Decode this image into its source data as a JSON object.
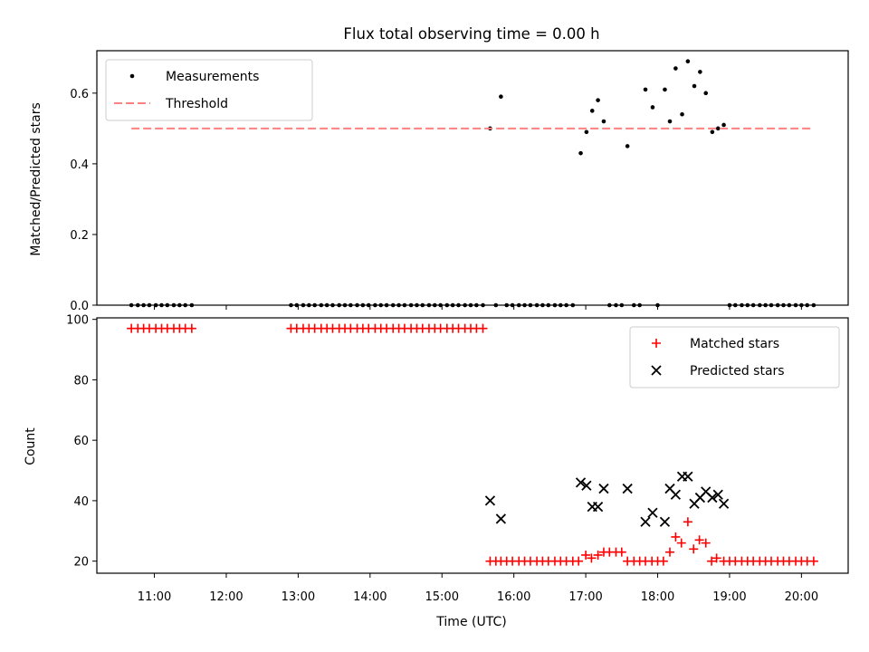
{
  "chart_data": [
    {
      "type": "scatter",
      "title": "Flux total observing time = 0.00 h",
      "xlabel": "",
      "ylabel": "Matched/Predicted stars",
      "ylim": [
        0,
        0.72
      ],
      "xlim": [
        10.2,
        20.65
      ],
      "yticks": [
        0.0,
        0.2,
        0.4,
        0.6
      ],
      "ytick_labels": [
        "0.0",
        "0.2",
        "0.4",
        "0.6"
      ],
      "legend_position": "top-left",
      "series": [
        {
          "name": "Measurements",
          "color": "#000000",
          "marker": "dot",
          "points": [
            [
              10.68,
              0
            ],
            [
              10.77,
              0
            ],
            [
              10.85,
              0
            ],
            [
              10.93,
              0
            ],
            [
              11.02,
              0
            ],
            [
              11.1,
              0
            ],
            [
              11.18,
              0
            ],
            [
              11.27,
              0
            ],
            [
              11.35,
              0
            ],
            [
              11.43,
              0
            ],
            [
              11.52,
              0
            ],
            [
              12.9,
              0
            ],
            [
              12.98,
              0
            ],
            [
              13.07,
              0
            ],
            [
              13.15,
              0
            ],
            [
              13.23,
              0
            ],
            [
              13.32,
              0
            ],
            [
              13.4,
              0
            ],
            [
              13.48,
              0
            ],
            [
              13.57,
              0
            ],
            [
              13.65,
              0
            ],
            [
              13.73,
              0
            ],
            [
              13.82,
              0
            ],
            [
              13.9,
              0
            ],
            [
              13.98,
              0
            ],
            [
              14.07,
              0
            ],
            [
              14.15,
              0
            ],
            [
              14.23,
              0
            ],
            [
              14.32,
              0
            ],
            [
              14.4,
              0
            ],
            [
              14.48,
              0
            ],
            [
              14.57,
              0
            ],
            [
              14.65,
              0
            ],
            [
              14.73,
              0
            ],
            [
              14.82,
              0
            ],
            [
              14.9,
              0
            ],
            [
              14.98,
              0
            ],
            [
              15.07,
              0
            ],
            [
              15.15,
              0
            ],
            [
              15.23,
              0
            ],
            [
              15.32,
              0
            ],
            [
              15.4,
              0
            ],
            [
              15.48,
              0
            ],
            [
              15.57,
              0
            ],
            [
              15.67,
              0.5
            ],
            [
              15.82,
              0.59
            ],
            [
              15.75,
              0
            ],
            [
              15.9,
              0
            ],
            [
              15.98,
              0
            ],
            [
              16.07,
              0
            ],
            [
              16.15,
              0
            ],
            [
              16.23,
              0
            ],
            [
              16.32,
              0
            ],
            [
              16.4,
              0
            ],
            [
              16.48,
              0
            ],
            [
              16.57,
              0
            ],
            [
              16.65,
              0
            ],
            [
              16.73,
              0
            ],
            [
              16.82,
              0
            ],
            [
              16.93,
              0.43
            ],
            [
              17.01,
              0.49
            ],
            [
              17.09,
              0.55
            ],
            [
              17.17,
              0.58
            ],
            [
              17.25,
              0.52
            ],
            [
              17.58,
              0.45
            ],
            [
              17.83,
              0.61
            ],
            [
              17.93,
              0.56
            ],
            [
              18.1,
              0.61
            ],
            [
              18.17,
              0.52
            ],
            [
              18.25,
              0.67
            ],
            [
              18.34,
              0.54
            ],
            [
              18.42,
              0.69
            ],
            [
              18.51,
              0.62
            ],
            [
              18.59,
              0.66
            ],
            [
              18.67,
              0.6
            ],
            [
              18.76,
              0.49
            ],
            [
              18.84,
              0.5
            ],
            [
              18.92,
              0.51
            ],
            [
              17.33,
              0
            ],
            [
              17.42,
              0
            ],
            [
              17.5,
              0
            ],
            [
              17.67,
              0
            ],
            [
              17.75,
              0
            ],
            [
              18.0,
              0
            ],
            [
              19.0,
              0
            ],
            [
              19.08,
              0
            ],
            [
              19.17,
              0
            ],
            [
              19.25,
              0
            ],
            [
              19.33,
              0
            ],
            [
              19.42,
              0
            ],
            [
              19.5,
              0
            ],
            [
              19.58,
              0
            ],
            [
              19.67,
              0
            ],
            [
              19.75,
              0
            ],
            [
              19.83,
              0
            ],
            [
              19.92,
              0
            ],
            [
              20.0,
              0
            ],
            [
              20.08,
              0
            ],
            [
              20.17,
              0
            ]
          ]
        },
        {
          "name": "Threshold",
          "color": "#ff8080",
          "style": "dashed",
          "x": [
            10.68,
            20.17
          ],
          "y": [
            0.5,
            0.5
          ]
        }
      ]
    },
    {
      "type": "scatter",
      "title": "",
      "xlabel": "Time (UTC)",
      "ylabel": "Count",
      "ylim": [
        16,
        100.5
      ],
      "xlim": [
        10.2,
        20.65
      ],
      "yticks": [
        20,
        40,
        60,
        80,
        100
      ],
      "ytick_labels": [
        "20",
        "40",
        "60",
        "80",
        "100"
      ],
      "xticks": [
        11,
        12,
        13,
        14,
        15,
        16,
        17,
        18,
        19,
        20
      ],
      "xtick_labels": [
        "11:00",
        "12:00",
        "13:00",
        "14:00",
        "15:00",
        "16:00",
        "17:00",
        "18:00",
        "19:00",
        "20:00"
      ],
      "legend_position": "top-right",
      "series": [
        {
          "name": "Matched stars",
          "color": "#ff0000",
          "marker": "plus",
          "points": [
            [
              10.68,
              97
            ],
            [
              10.77,
              97
            ],
            [
              10.85,
              97
            ],
            [
              10.93,
              97
            ],
            [
              11.02,
              97
            ],
            [
              11.1,
              97
            ],
            [
              11.18,
              97
            ],
            [
              11.27,
              97
            ],
            [
              11.35,
              97
            ],
            [
              11.43,
              97
            ],
            [
              11.52,
              97
            ],
            [
              12.9,
              97
            ],
            [
              12.98,
              97
            ],
            [
              13.07,
              97
            ],
            [
              13.15,
              97
            ],
            [
              13.23,
              97
            ],
            [
              13.32,
              97
            ],
            [
              13.4,
              97
            ],
            [
              13.48,
              97
            ],
            [
              13.57,
              97
            ],
            [
              13.65,
              97
            ],
            [
              13.73,
              97
            ],
            [
              13.82,
              97
            ],
            [
              13.9,
              97
            ],
            [
              13.98,
              97
            ],
            [
              14.07,
              97
            ],
            [
              14.15,
              97
            ],
            [
              14.23,
              97
            ],
            [
              14.32,
              97
            ],
            [
              14.4,
              97
            ],
            [
              14.48,
              97
            ],
            [
              14.57,
              97
            ],
            [
              14.65,
              97
            ],
            [
              14.73,
              97
            ],
            [
              14.82,
              97
            ],
            [
              14.9,
              97
            ],
            [
              14.98,
              97
            ],
            [
              15.07,
              97
            ],
            [
              15.15,
              97
            ],
            [
              15.23,
              97
            ],
            [
              15.32,
              97
            ],
            [
              15.4,
              97
            ],
            [
              15.48,
              97
            ],
            [
              15.57,
              97
            ],
            [
              15.67,
              20
            ],
            [
              15.75,
              20
            ],
            [
              15.82,
              20
            ],
            [
              15.9,
              20
            ],
            [
              15.98,
              20
            ],
            [
              16.07,
              20
            ],
            [
              16.15,
              20
            ],
            [
              16.23,
              20
            ],
            [
              16.32,
              20
            ],
            [
              16.4,
              20
            ],
            [
              16.48,
              20
            ],
            [
              16.57,
              20
            ],
            [
              16.65,
              20
            ],
            [
              16.73,
              20
            ],
            [
              16.82,
              20
            ],
            [
              16.9,
              20
            ],
            [
              17.0,
              22
            ],
            [
              17.08,
              21
            ],
            [
              17.17,
              22
            ],
            [
              17.25,
              23
            ],
            [
              17.33,
              23
            ],
            [
              17.42,
              23
            ],
            [
              17.5,
              23
            ],
            [
              17.58,
              20
            ],
            [
              17.67,
              20
            ],
            [
              17.75,
              20
            ],
            [
              17.83,
              20
            ],
            [
              17.92,
              20
            ],
            [
              18.0,
              20
            ],
            [
              18.08,
              20
            ],
            [
              18.17,
              23
            ],
            [
              18.25,
              28
            ],
            [
              18.33,
              26
            ],
            [
              18.42,
              33
            ],
            [
              18.5,
              24
            ],
            [
              18.58,
              27
            ],
            [
              18.67,
              26
            ],
            [
              18.75,
              20
            ],
            [
              18.82,
              21
            ],
            [
              18.92,
              20
            ],
            [
              19.0,
              20
            ],
            [
              19.08,
              20
            ],
            [
              19.17,
              20
            ],
            [
              19.25,
              20
            ],
            [
              19.33,
              20
            ],
            [
              19.42,
              20
            ],
            [
              19.5,
              20
            ],
            [
              19.58,
              20
            ],
            [
              19.67,
              20
            ],
            [
              19.75,
              20
            ],
            [
              19.83,
              20
            ],
            [
              19.92,
              20
            ],
            [
              20.0,
              20
            ],
            [
              20.08,
              20
            ],
            [
              20.17,
              20
            ]
          ]
        },
        {
          "name": "Predicted stars",
          "color": "#000000",
          "marker": "x",
          "points": [
            [
              15.67,
              40
            ],
            [
              15.82,
              34
            ],
            [
              16.93,
              46
            ],
            [
              17.01,
              45
            ],
            [
              17.09,
              38
            ],
            [
              17.17,
              38
            ],
            [
              17.25,
              44
            ],
            [
              17.58,
              44
            ],
            [
              17.83,
              33
            ],
            [
              17.93,
              36
            ],
            [
              18.1,
              33
            ],
            [
              18.17,
              44
            ],
            [
              18.25,
              42
            ],
            [
              18.34,
              48
            ],
            [
              18.42,
              48
            ],
            [
              18.51,
              39
            ],
            [
              18.59,
              41
            ],
            [
              18.67,
              43
            ],
            [
              18.76,
              41
            ],
            [
              18.84,
              42
            ],
            [
              18.92,
              39
            ]
          ]
        }
      ]
    }
  ]
}
